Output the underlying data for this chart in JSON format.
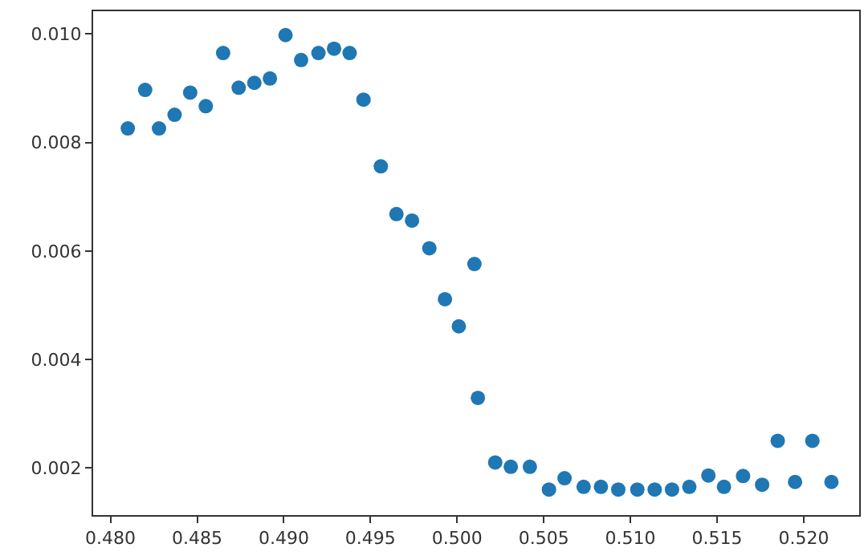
{
  "chart_data": {
    "type": "scatter",
    "marker": "circle",
    "legend": false,
    "xlim": [
      0.479,
      0.5232
    ],
    "ylim": [
      0.00113,
      0.01042
    ],
    "xticks": [
      {
        "value": 0.48,
        "label": "0.480"
      },
      {
        "value": 0.485,
        "label": "0.485"
      },
      {
        "value": 0.49,
        "label": "0.490"
      },
      {
        "value": 0.495,
        "label": "0.495"
      },
      {
        "value": 0.5,
        "label": "0.500"
      },
      {
        "value": 0.505,
        "label": "0.505"
      },
      {
        "value": 0.51,
        "label": "0.510"
      },
      {
        "value": 0.515,
        "label": "0.515"
      },
      {
        "value": 0.52,
        "label": "0.520"
      }
    ],
    "yticks": [
      {
        "value": 0.002,
        "label": "0.002"
      },
      {
        "value": 0.004,
        "label": "0.004"
      },
      {
        "value": 0.006,
        "label": "0.006"
      },
      {
        "value": 0.008,
        "label": "0.008"
      },
      {
        "value": 0.01,
        "label": "0.010"
      }
    ],
    "x": [
      0.481,
      0.482,
      0.4828,
      0.4837,
      0.4846,
      0.4855,
      0.4865,
      0.4874,
      0.4883,
      0.4892,
      0.4901,
      0.491,
      0.492,
      0.4929,
      0.4938,
      0.4946,
      0.4956,
      0.4965,
      0.4974,
      0.4984,
      0.4993,
      0.5001,
      0.501,
      0.5012,
      0.5022,
      0.5031,
      0.5042,
      0.5053,
      0.5062,
      0.5073,
      0.5083,
      0.5093,
      0.5104,
      0.5114,
      0.5124,
      0.5134,
      0.5145,
      0.5154,
      0.5165,
      0.5176,
      0.5185,
      0.5195,
      0.5205,
      0.5216
    ],
    "series": [
      {
        "color": "#1f77b4",
        "values": [
          0.00826,
          0.00897,
          0.00826,
          0.00851,
          0.00892,
          0.00867,
          0.00965,
          0.00901,
          0.0091,
          0.00918,
          0.00998,
          0.00952,
          0.00965,
          0.00973,
          0.00965,
          0.00879,
          0.00756,
          0.00668,
          0.00656,
          0.00605,
          0.00511,
          0.00461,
          0.00576,
          0.00329,
          0.0021,
          0.00202,
          0.00202,
          0.0016,
          0.00181,
          0.00165,
          0.00165,
          0.0016,
          0.0016,
          0.0016,
          0.0016,
          0.00165,
          0.00186,
          0.00165,
          0.00185,
          0.00169,
          0.0025,
          0.00174,
          0.0025,
          0.00174
        ]
      }
    ]
  }
}
